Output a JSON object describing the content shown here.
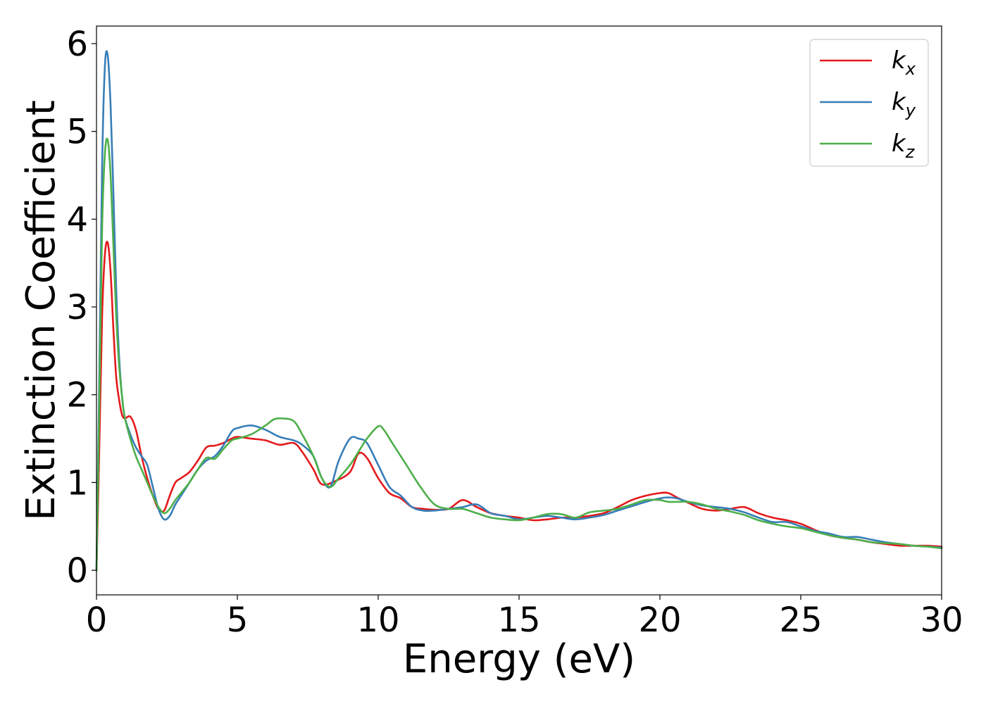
{
  "chart_data": {
    "type": "line",
    "xlabel": "Energy (eV)",
    "ylabel": "Extinction Coefficient",
    "xlim": [
      0,
      30
    ],
    "ylim": [
      -0.28,
      6.2
    ],
    "xticks": [
      0,
      5,
      10,
      15,
      20,
      25,
      30
    ],
    "yticks": [
      0,
      1,
      2,
      3,
      4,
      5,
      6
    ],
    "grid": false,
    "legend_position": "top-right",
    "series": [
      {
        "name": "k_x",
        "label_main": "k",
        "label_sub": "x",
        "color": "#e41a1c",
        "x": [
          0,
          0.1,
          0.2,
          0.3,
          0.4,
          0.5,
          0.6,
          0.7,
          0.8,
          0.9,
          1.0,
          1.2,
          1.4,
          1.6,
          1.8,
          2.0,
          2.2,
          2.4,
          2.6,
          2.8,
          3.0,
          3.3,
          3.6,
          3.9,
          4.2,
          4.5,
          4.8,
          5.0,
          5.5,
          6.0,
          6.5,
          7.0,
          7.3,
          7.7,
          8.0,
          8.5,
          9.0,
          9.3,
          9.6,
          10.0,
          10.4,
          10.8,
          11.2,
          11.6,
          12.0,
          12.5,
          13.0,
          13.5,
          14.0,
          14.5,
          15.0,
          15.5,
          16.0,
          16.5,
          17.0,
          17.5,
          18.0,
          18.5,
          19.0,
          19.5,
          20.0,
          20.3,
          20.6,
          21.0,
          21.5,
          22.0,
          22.5,
          23.0,
          23.5,
          24.0,
          24.5,
          25.0,
          25.5,
          26.0,
          26.5,
          27.0,
          27.5,
          28.0,
          28.5,
          29.0,
          29.5,
          30.0
        ],
        "y": [
          0,
          1.4,
          2.9,
          3.6,
          3.73,
          3.4,
          2.75,
          2.2,
          1.95,
          1.78,
          1.73,
          1.75,
          1.6,
          1.3,
          1.05,
          0.85,
          0.7,
          0.68,
          0.85,
          1.0,
          1.05,
          1.12,
          1.25,
          1.4,
          1.42,
          1.45,
          1.5,
          1.52,
          1.5,
          1.48,
          1.43,
          1.45,
          1.35,
          1.15,
          0.98,
          1.02,
          1.12,
          1.33,
          1.28,
          1.05,
          0.88,
          0.82,
          0.72,
          0.7,
          0.69,
          0.7,
          0.8,
          0.72,
          0.65,
          0.62,
          0.6,
          0.57,
          0.58,
          0.6,
          0.6,
          0.62,
          0.65,
          0.72,
          0.8,
          0.85,
          0.88,
          0.88,
          0.83,
          0.77,
          0.7,
          0.68,
          0.7,
          0.72,
          0.65,
          0.6,
          0.57,
          0.53,
          0.46,
          0.4,
          0.37,
          0.35,
          0.32,
          0.3,
          0.28,
          0.28,
          0.28,
          0.27
        ]
      },
      {
        "name": "k_y",
        "label_main": "k",
        "label_sub": "y",
        "color": "#377eb8",
        "x": [
          0,
          0.1,
          0.2,
          0.3,
          0.4,
          0.5,
          0.6,
          0.7,
          0.8,
          0.9,
          1.0,
          1.2,
          1.4,
          1.6,
          1.8,
          2.0,
          2.2,
          2.4,
          2.6,
          2.8,
          3.0,
          3.3,
          3.6,
          3.9,
          4.2,
          4.5,
          4.8,
          5.0,
          5.5,
          6.0,
          6.5,
          7.0,
          7.3,
          7.7,
          8.0,
          8.3,
          8.6,
          9.0,
          9.3,
          9.6,
          10.0,
          10.4,
          10.8,
          11.2,
          11.6,
          12.0,
          12.5,
          13.0,
          13.5,
          14.0,
          14.5,
          15.0,
          15.5,
          16.0,
          16.5,
          17.0,
          17.5,
          18.0,
          18.5,
          19.0,
          19.5,
          20.0,
          20.3,
          20.6,
          21.0,
          21.5,
          22.0,
          22.5,
          23.0,
          23.5,
          24.0,
          24.5,
          25.0,
          25.5,
          26.0,
          26.5,
          27.0,
          27.5,
          28.0,
          28.5,
          29.0,
          29.5,
          30.0
        ],
        "y": [
          0,
          2.2,
          4.6,
          5.75,
          5.86,
          5.3,
          4.3,
          3.2,
          2.45,
          2.0,
          1.75,
          1.55,
          1.4,
          1.3,
          1.2,
          0.95,
          0.7,
          0.58,
          0.62,
          0.75,
          0.85,
          1.0,
          1.15,
          1.25,
          1.3,
          1.42,
          1.58,
          1.62,
          1.65,
          1.6,
          1.52,
          1.48,
          1.43,
          1.3,
          1.05,
          0.95,
          1.25,
          1.5,
          1.5,
          1.45,
          1.2,
          0.95,
          0.85,
          0.72,
          0.68,
          0.68,
          0.7,
          0.72,
          0.75,
          0.65,
          0.62,
          0.58,
          0.6,
          0.62,
          0.6,
          0.58,
          0.6,
          0.63,
          0.68,
          0.73,
          0.78,
          0.82,
          0.83,
          0.82,
          0.78,
          0.74,
          0.72,
          0.7,
          0.66,
          0.6,
          0.55,
          0.55,
          0.5,
          0.45,
          0.42,
          0.38,
          0.38,
          0.35,
          0.32,
          0.3,
          0.28,
          0.27,
          0.26
        ]
      },
      {
        "name": "k_z",
        "label_main": "k",
        "label_sub": "z",
        "color": "#4daf4a",
        "x": [
          0,
          0.1,
          0.2,
          0.3,
          0.4,
          0.5,
          0.6,
          0.7,
          0.8,
          0.9,
          1.0,
          1.2,
          1.4,
          1.6,
          1.8,
          2.0,
          2.2,
          2.4,
          2.6,
          2.8,
          3.0,
          3.3,
          3.6,
          3.9,
          4.2,
          4.5,
          4.8,
          5.0,
          5.5,
          6.0,
          6.3,
          6.6,
          7.0,
          7.3,
          7.7,
          8.0,
          8.3,
          8.6,
          9.0,
          9.3,
          9.6,
          10.0,
          10.2,
          10.5,
          11.0,
          11.5,
          12.0,
          12.5,
          13.0,
          13.5,
          14.0,
          14.5,
          15.0,
          15.5,
          16.0,
          16.5,
          17.0,
          17.5,
          18.0,
          18.5,
          19.0,
          19.5,
          20.0,
          20.3,
          20.6,
          21.0,
          21.5,
          22.0,
          22.5,
          23.0,
          23.5,
          24.0,
          24.5,
          25.0,
          25.5,
          26.0,
          26.5,
          27.0,
          27.5,
          28.0,
          28.5,
          29.0,
          29.5,
          30.0
        ],
        "y": [
          0,
          1.9,
          3.9,
          4.75,
          4.9,
          4.5,
          3.7,
          2.9,
          2.35,
          2.0,
          1.75,
          1.5,
          1.3,
          1.15,
          1.0,
          0.85,
          0.72,
          0.65,
          0.7,
          0.8,
          0.88,
          1.0,
          1.15,
          1.28,
          1.27,
          1.38,
          1.48,
          1.5,
          1.55,
          1.65,
          1.72,
          1.73,
          1.7,
          1.55,
          1.3,
          1.05,
          0.95,
          1.05,
          1.2,
          1.35,
          1.5,
          1.64,
          1.6,
          1.45,
          1.2,
          0.95,
          0.75,
          0.7,
          0.7,
          0.65,
          0.6,
          0.58,
          0.57,
          0.6,
          0.64,
          0.64,
          0.6,
          0.66,
          0.68,
          0.7,
          0.75,
          0.8,
          0.8,
          0.78,
          0.78,
          0.78,
          0.75,
          0.7,
          0.67,
          0.63,
          0.57,
          0.53,
          0.5,
          0.48,
          0.44,
          0.4,
          0.37,
          0.35,
          0.32,
          0.31,
          0.3,
          0.28,
          0.27,
          0.25
        ]
      }
    ]
  }
}
